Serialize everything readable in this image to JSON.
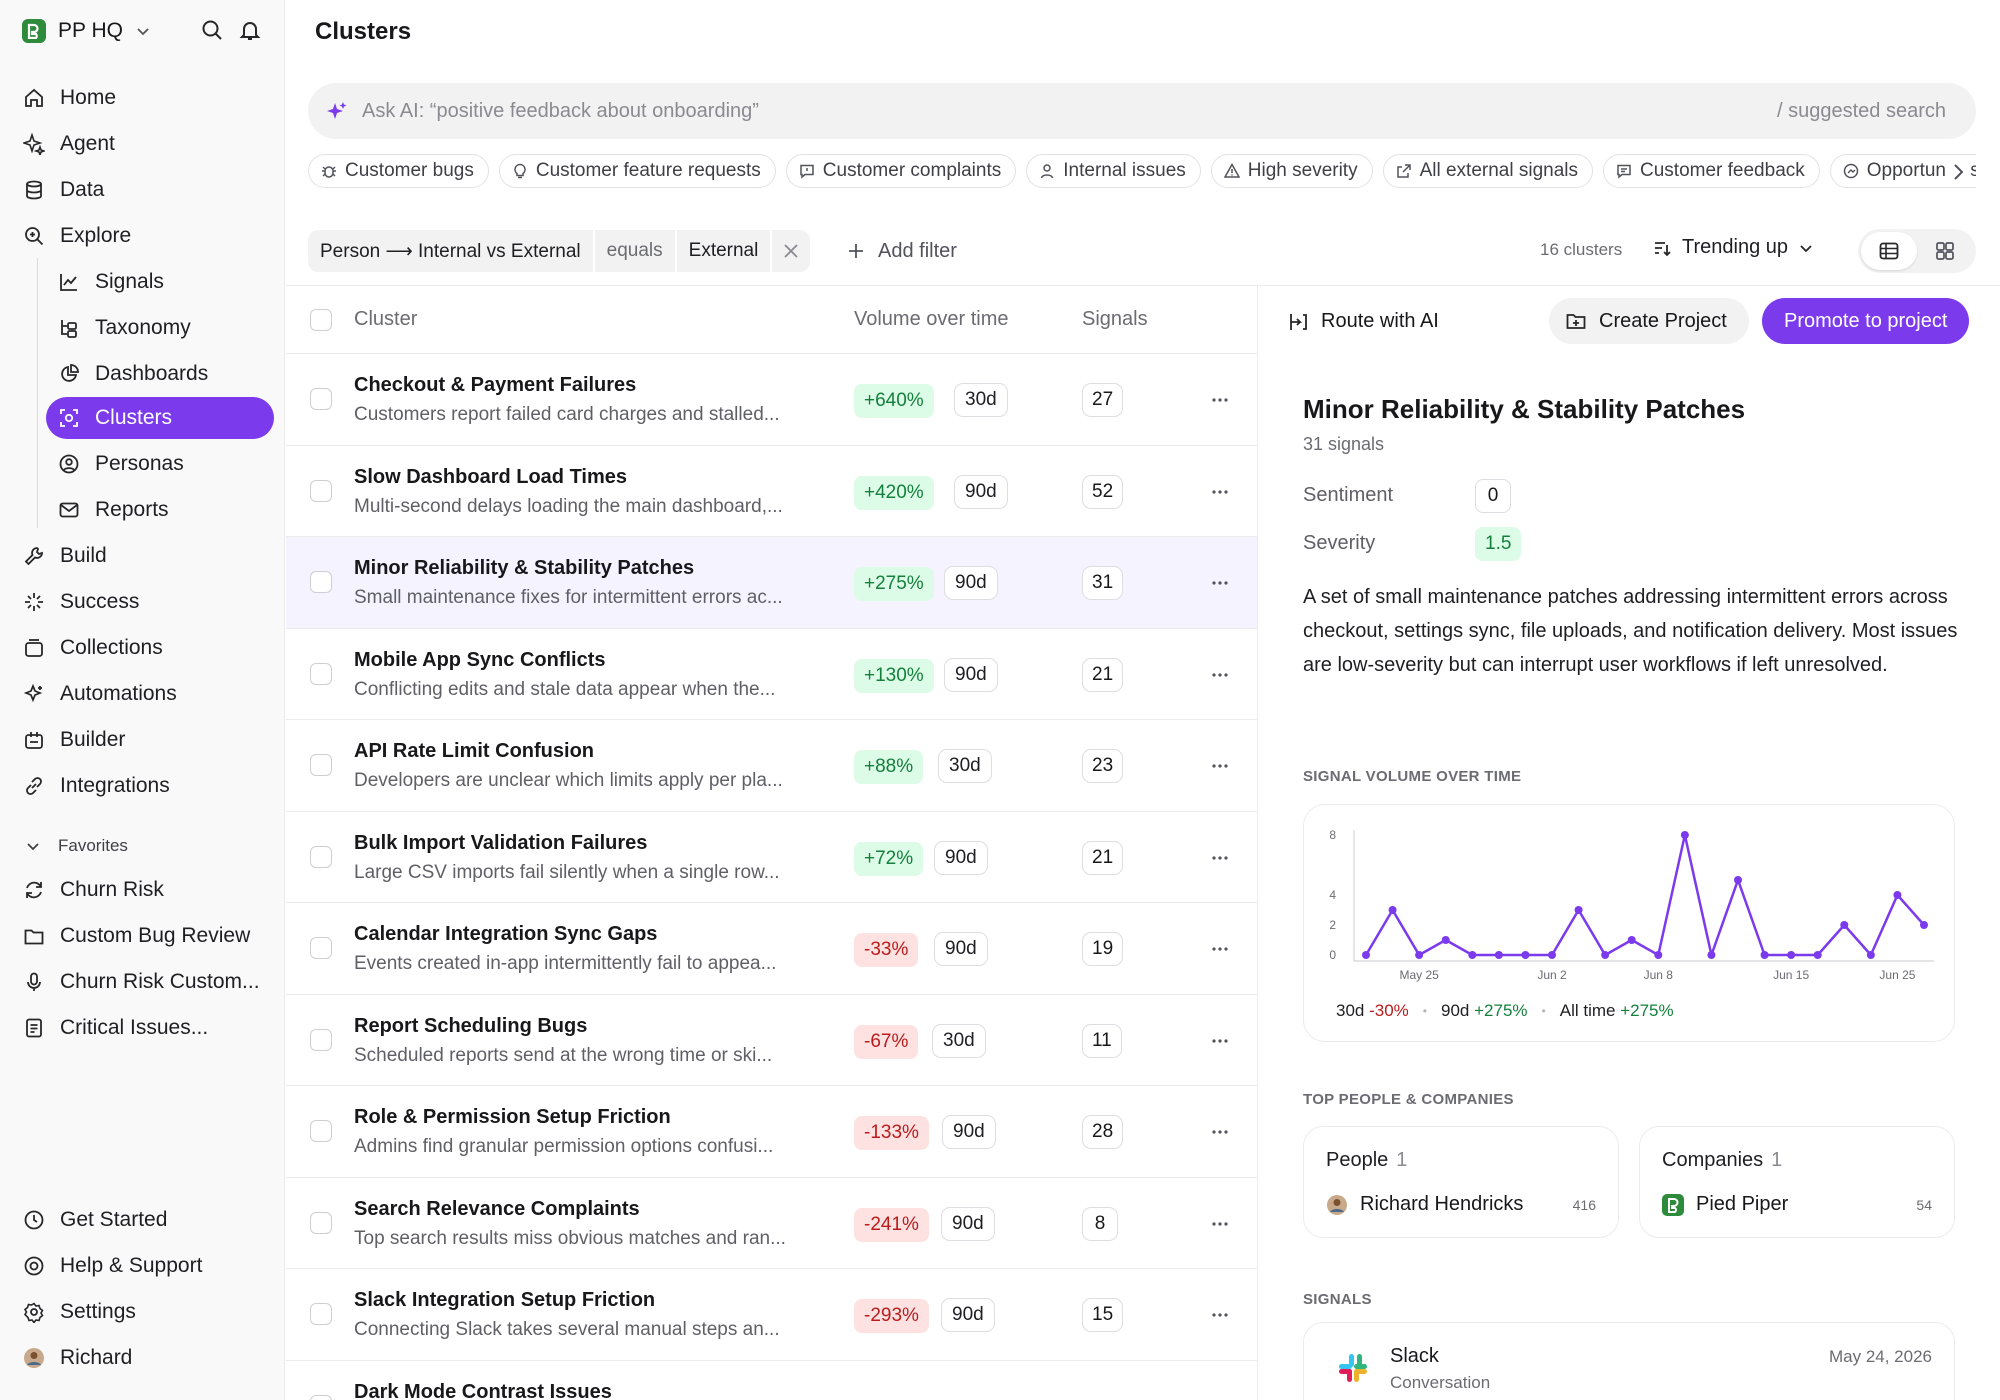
{
  "app": {
    "workspace": "PP HQ",
    "user": "Richard"
  },
  "nav": {
    "home": "Home",
    "agent": "Agent",
    "data": "Data",
    "explore": "Explore",
    "signals": "Signals",
    "taxonomy": "Taxonomy",
    "dashboards": "Dashboards",
    "clusters": "Clusters",
    "personas": "Personas",
    "reports": "Reports",
    "build": "Build",
    "success": "Success",
    "collections": "Collections",
    "automations": "Automations",
    "builder": "Builder",
    "integrations": "Integrations",
    "favorites_heading": "Favorites",
    "favorites": [
      "Churn Risk",
      "Custom Bug Review",
      "Churn Risk Custom...",
      "Critical Issues..."
    ],
    "get_started": "Get Started",
    "help": "Help & Support",
    "settings": "Settings"
  },
  "page": {
    "title": "Clusters",
    "search_placeholder": "Ask AI: “positive feedback about onboarding”",
    "search_hint": "/ suggested search",
    "chips": [
      "Customer bugs",
      "Customer feature requests",
      "Customer complaints",
      "Internal issues",
      "High severity",
      "All external signals",
      "Customer feedback",
      "Opportunities"
    ],
    "filter": {
      "field": "Person ⟶ Internal vs External",
      "operator": "equals",
      "value": "External"
    },
    "add_filter": "Add filter",
    "count": "16 clusters",
    "sort": "Trending up"
  },
  "table": {
    "headers": {
      "cluster": "Cluster",
      "volume": "Volume over time",
      "signals": "Signals"
    },
    "rows": [
      {
        "title": "Checkout & Payment Failures",
        "desc": "Customers report failed card charges and stalled...",
        "trend": "+640%",
        "dir": "up",
        "period": "30d",
        "signals": "27"
      },
      {
        "title": "Slow Dashboard Load Times",
        "desc": "Multi-second delays loading the main dashboard,...",
        "trend": "+420%",
        "dir": "up",
        "period": "90d",
        "signals": "52"
      },
      {
        "title": "Minor Reliability & Stability Patches",
        "desc": "Small maintenance fixes for intermittent errors ac...",
        "trend": "+275%",
        "dir": "up",
        "period": "90d",
        "signals": "31"
      },
      {
        "title": "Mobile App Sync Conflicts",
        "desc": "Conflicting edits and stale data appear when the...",
        "trend": "+130%",
        "dir": "up",
        "period": "90d",
        "signals": "21"
      },
      {
        "title": "API Rate Limit Confusion",
        "desc": "Developers are unclear which limits apply per pla...",
        "trend": "+88%",
        "dir": "up",
        "period": "30d",
        "signals": "23"
      },
      {
        "title": "Bulk Import Validation Failures",
        "desc": "Large CSV imports fail silently when a single row...",
        "trend": "+72%",
        "dir": "up",
        "period": "90d",
        "signals": "21"
      },
      {
        "title": "Calendar Integration Sync Gaps",
        "desc": "Events created in-app intermittently fail to appea...",
        "trend": "-33%",
        "dir": "down",
        "period": "90d",
        "signals": "19"
      },
      {
        "title": "Report Scheduling Bugs",
        "desc": "Scheduled reports send at the wrong time or ski...",
        "trend": "-67%",
        "dir": "down",
        "period": "30d",
        "signals": "11"
      },
      {
        "title": "Role & Permission Setup Friction",
        "desc": "Admins find granular permission options confusi...",
        "trend": "-133%",
        "dir": "down",
        "period": "90d",
        "signals": "28"
      },
      {
        "title": "Search Relevance Complaints",
        "desc": "Top search results miss obvious matches and ran...",
        "trend": "-241%",
        "dir": "down",
        "period": "90d",
        "signals": "8"
      },
      {
        "title": "Slack Integration Setup Friction",
        "desc": "Connecting Slack takes several manual steps an...",
        "trend": "-293%",
        "dir": "down",
        "period": "90d",
        "signals": "15"
      },
      {
        "title": "Dark Mode Contrast Issues",
        "desc": "",
        "trend": "",
        "dir": "down",
        "period": "",
        "signals": ""
      }
    ]
  },
  "detail": {
    "route": "Route with AI",
    "create": "Create Project",
    "promote": "Promote to project",
    "title": "Minor Reliability & Stability Patches",
    "sub": "31 signals",
    "sentiment_label": "Sentiment",
    "sentiment": "0",
    "severity_label": "Severity",
    "severity": "1.5",
    "desc": "A set of small maintenance patches addressing intermittent errors across checkout, settings sync, file uploads, and notification delivery. Most issues are low-severity but can interrupt user workflows if left unresolved.",
    "volume_heading": "SIGNAL VOLUME OVER TIME",
    "stats": {
      "l30": "30d",
      "v30": "-30%",
      "l90": "90d",
      "v90": "+275%",
      "lall": "All time",
      "vall": "+275%"
    },
    "top_heading": "TOP PEOPLE & COMPANIES",
    "people": {
      "label": "People",
      "count": "1",
      "name": "Richard Hendricks",
      "num": "416"
    },
    "companies": {
      "label": "Companies",
      "count": "1",
      "name": "Pied Piper",
      "num": "54"
    },
    "signals_heading": "SIGNALS",
    "signal": {
      "source": "Slack",
      "type": "Conversation",
      "date": "May 24, 2026"
    }
  },
  "chart_data": {
    "type": "line",
    "title": "SIGNAL VOLUME OVER TIME",
    "xlabel": "",
    "ylabel": "",
    "ylim": [
      0,
      8
    ],
    "y_ticks": [
      "0",
      "2",
      "4",
      "8"
    ],
    "x_ticks": [
      "May 25",
      "Jun 2",
      "Jun 8",
      "Jun 15",
      "Jun 25"
    ],
    "series": [
      {
        "color": "#7c3aed",
        "values": [
          0,
          3,
          0,
          1,
          0,
          0,
          0,
          0,
          3,
          0,
          1,
          0,
          8,
          0,
          5,
          0,
          0,
          0,
          2,
          0,
          4,
          2
        ]
      }
    ]
  }
}
